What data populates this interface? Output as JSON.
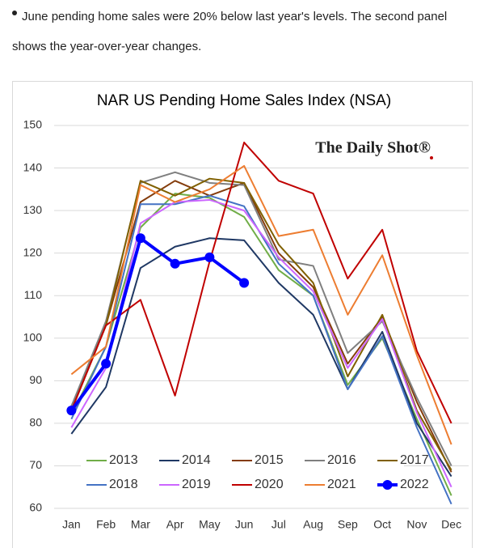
{
  "caption": "June pending home sales were 20% below last year's levels. The second panel shows the year-over-year changes.",
  "chart_data": {
    "type": "line",
    "title": "NAR US Pending Home Sales Index (NSA)",
    "watermark": "The Daily Shot®",
    "categories": [
      "Jan",
      "Feb",
      "Mar",
      "Apr",
      "May",
      "Jun",
      "Jul",
      "Aug",
      "Sep",
      "Oct",
      "Nov",
      "Dec"
    ],
    "ylim": [
      60,
      150
    ],
    "yticks": [
      60,
      70,
      80,
      90,
      100,
      110,
      120,
      130,
      140,
      150
    ],
    "grid": true,
    "legend": "bottom",
    "series": [
      {
        "name": "2013",
        "color": "#70ad47",
        "values": [
          82,
          98,
          126,
          134,
          133,
          128.5,
          116,
          110,
          89,
          100,
          81,
          63
        ]
      },
      {
        "name": "2014",
        "color": "#1f3864",
        "values": [
          77.5,
          88.5,
          116.5,
          121.5,
          123.5,
          123,
          113,
          105.5,
          88,
          101.5,
          80,
          67.5
        ]
      },
      {
        "name": "2015",
        "color": "#843c0c",
        "values": [
          84,
          103,
          132,
          137,
          133.5,
          136.5,
          120,
          112,
          94,
          105,
          85,
          68.5
        ]
      },
      {
        "name": "2016",
        "color": "#7f7f7f",
        "values": [
          84,
          104,
          136.5,
          139,
          136.5,
          136,
          118.5,
          117,
          96.5,
          104,
          86,
          70
        ]
      },
      {
        "name": "2017",
        "color": "#806000",
        "values": [
          83,
          103,
          137,
          133.5,
          137.5,
          136.5,
          122,
          113,
          91,
          105.5,
          83,
          69
        ]
      },
      {
        "name": "2018",
        "color": "#4472c4",
        "values": [
          81,
          98,
          131.5,
          131.5,
          133.5,
          131,
          117.5,
          110,
          88,
          100.5,
          79,
          61
        ]
      },
      {
        "name": "2019",
        "color": "#cc66ff",
        "values": [
          79,
          93,
          127,
          132,
          132.5,
          130,
          119,
          111,
          93,
          104.5,
          82.5,
          65
        ]
      },
      {
        "name": "2020",
        "color": "#c00000",
        "values": [
          83,
          103,
          109,
          86.5,
          118,
          146,
          137,
          134,
          114,
          125.5,
          97,
          80
        ]
      },
      {
        "name": "2021",
        "color": "#ed7d31",
        "values": [
          91.5,
          98,
          136,
          132,
          135,
          140.5,
          124,
          125.5,
          105.5,
          119.5,
          96,
          75
        ]
      },
      {
        "name": "2022",
        "color": "#0000ff",
        "values": [
          83,
          94,
          123.5,
          117.5,
          119,
          113,
          null,
          null,
          null,
          null,
          null,
          null
        ]
      }
    ]
  }
}
